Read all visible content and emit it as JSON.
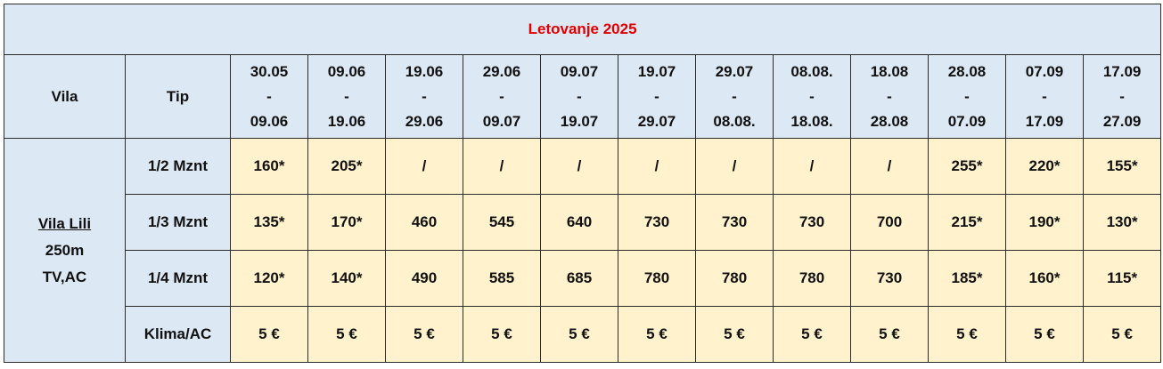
{
  "title": "Letovanje 2025",
  "header": {
    "vila": "Vila",
    "tip": "Tip"
  },
  "periods": [
    {
      "from": "30.05",
      "sep": "-",
      "to": "09.06"
    },
    {
      "from": "09.06",
      "sep": "-",
      "to": "19.06"
    },
    {
      "from": "19.06",
      "sep": "-",
      "to": "29.06"
    },
    {
      "from": "29.06",
      "sep": "-",
      "to": "09.07"
    },
    {
      "from": "09.07",
      "sep": "-",
      "to": "19.07"
    },
    {
      "from": "19.07",
      "sep": "-",
      "to": "29.07"
    },
    {
      "from": "29.07",
      "sep": "-",
      "to": "08.08."
    },
    {
      "from": "08.08.",
      "sep": "-",
      "to": "18.08."
    },
    {
      "from": "18.08",
      "sep": "-",
      "to": "28.08"
    },
    {
      "from": "28.08",
      "sep": "-",
      "to": "07.09"
    },
    {
      "from": "07.09",
      "sep": "-",
      "to": "17.09"
    },
    {
      "from": "17.09",
      "sep": "-",
      "to": "27.09"
    }
  ],
  "vila": {
    "name": "Vila Lili",
    "distance": "250m",
    "features": "TV,AC"
  },
  "rows": [
    {
      "type": "1/2 Mznt",
      "values": [
        "160*",
        "205*",
        "/",
        "/",
        "/",
        "/",
        "/",
        "/",
        "/",
        "255*",
        "220*",
        "155*"
      ]
    },
    {
      "type": "1/3 Mznt",
      "values": [
        "135*",
        "170*",
        "460",
        "545",
        "640",
        "730",
        "730",
        "730",
        "700",
        "215*",
        "190*",
        "130*"
      ]
    },
    {
      "type": "1/4 Mznt",
      "values": [
        "120*",
        "140*",
        "490",
        "585",
        "685",
        "780",
        "780",
        "780",
        "730",
        "185*",
        "160*",
        "115*"
      ]
    },
    {
      "type": "Klima/AC",
      "values": [
        "5 €",
        "5 €",
        "5 €",
        "5 €",
        "5 €",
        "5 €",
        "5 €",
        "5 €",
        "5 €",
        "5 €",
        "5 €",
        "5 €"
      ]
    }
  ]
}
